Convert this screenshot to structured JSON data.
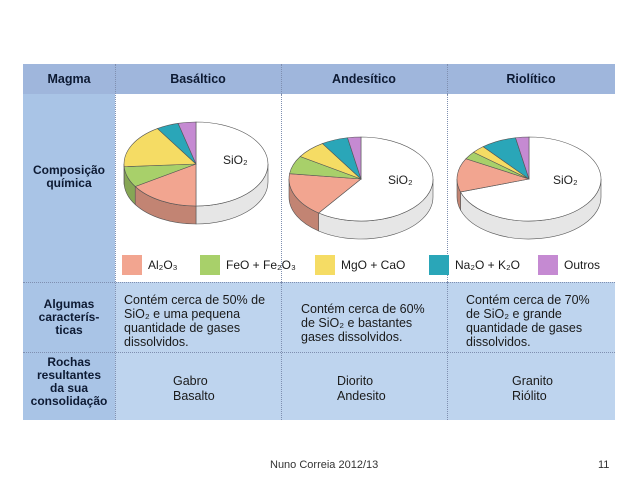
{
  "table": {
    "header_label": "Magma",
    "columns": [
      "Basáltico",
      "Andesítico",
      "Riolítico"
    ],
    "row_labels": {
      "composition": [
        "Composição",
        "química"
      ],
      "characteristics": [
        "Algumas",
        "caracterís-",
        "ticas"
      ],
      "rocks": [
        "Rochas",
        "resultantes",
        "da sua",
        "consolidação"
      ]
    },
    "characteristics": [
      [
        "Contém cerca de 50% de",
        "SiO₂ e uma pequena",
        "quantidade de gases",
        "dissolvidos."
      ],
      [
        "Contém cerca de 60%",
        "de SiO₂ e bastantes",
        "gases dissolvidos."
      ],
      [
        "Contém cerca de 70%",
        "de SiO₂ e grande",
        "quantidade de gases",
        "dissolvidos."
      ]
    ],
    "rocks": [
      [
        "Gabro",
        "Basalto"
      ],
      [
        "Diorito",
        "Andesito"
      ],
      [
        "Granito",
        "Riólito"
      ]
    ]
  },
  "legend": [
    {
      "label": "Al₂O₃",
      "color": "#f2a590"
    },
    {
      "label": "FeO + Fe₂O₃",
      "color": "#a8d06a"
    },
    {
      "label": "MgO + CaO",
      "color": "#f5dc64"
    },
    {
      "label": "Na₂O + K₂O",
      "color": "#2aa6b8"
    },
    {
      "label": "Outros",
      "color": "#c58ad2"
    }
  ],
  "chart_data": [
    {
      "type": "pie",
      "title": "Basáltico",
      "series_label": "SiO₂",
      "categories": [
        "SiO₂",
        "Al₂O₃",
        "FeO + Fe₂O₃",
        "MgO + CaO",
        "Na₂O + K₂O",
        "Outros"
      ],
      "values": [
        50,
        16,
        8,
        17,
        5,
        4
      ]
    },
    {
      "type": "pie",
      "title": "Andesítico",
      "series_label": "SiO₂",
      "categories": [
        "SiO₂",
        "Al₂O₃",
        "FeO + Fe₂O₃",
        "MgO + CaO",
        "Na₂O + K₂O",
        "Outros"
      ],
      "values": [
        60,
        17,
        7,
        7,
        6,
        3
      ]
    },
    {
      "type": "pie",
      "title": "Riolítico",
      "series_label": "SiO₂",
      "categories": [
        "SiO₂",
        "Al₂O₃",
        "FeO + Fe₂O₃",
        "MgO + CaO",
        "Na₂O + K₂O",
        "Outros"
      ],
      "values": [
        70,
        13,
        3,
        3,
        8,
        3
      ]
    }
  ],
  "footer": {
    "author": "Nuno Correia 2012/13",
    "page": "11"
  }
}
